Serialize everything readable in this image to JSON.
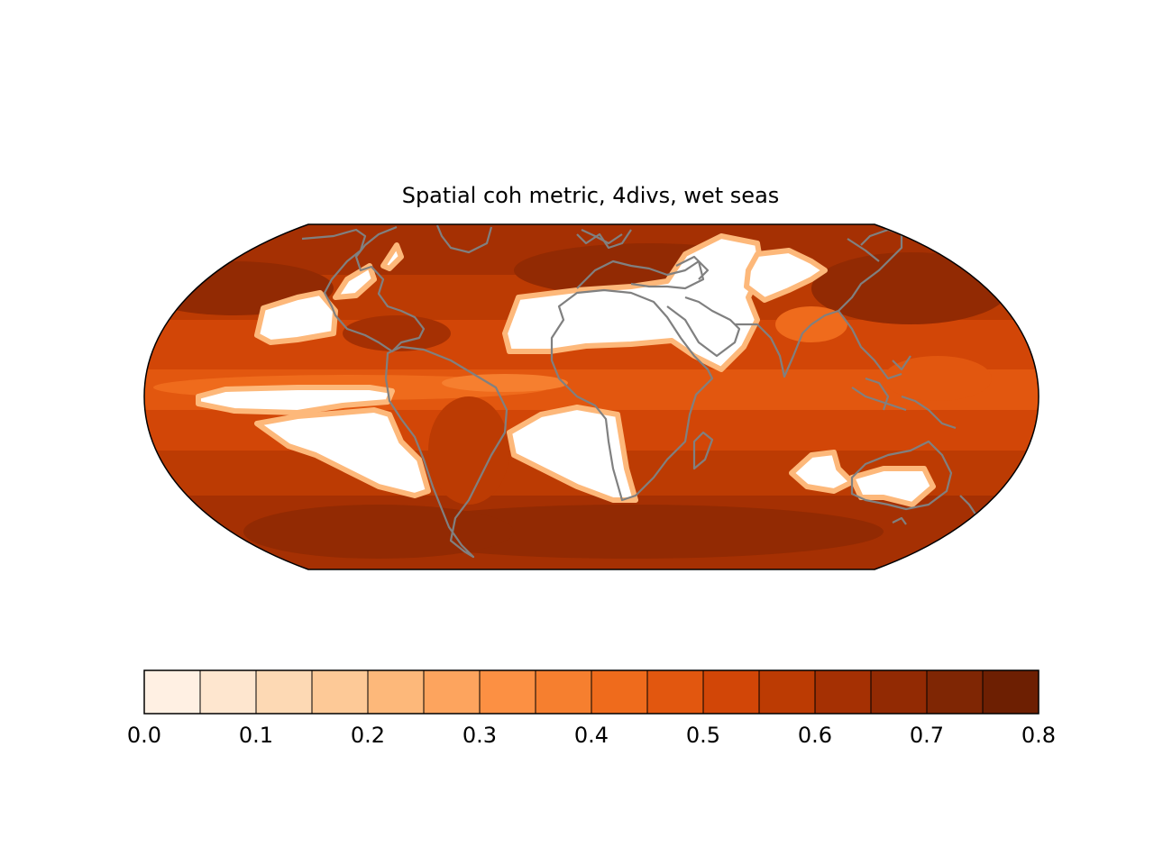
{
  "title": "Spatial coh metric, 4divs, wet seas",
  "map": {
    "projection": "robinson",
    "coastline_color": "#808080",
    "masked_color": "#ffffff",
    "masked_regions": [
      "Sahara / Arabia",
      "Central Asia",
      "Western US / Mexico",
      "Eastern tropical Pacific",
      "Southeast Pacific",
      "South Atlantic",
      "Australia",
      "Southeast Indian Ocean"
    ]
  },
  "colorbar": {
    "colormap": "Oranges",
    "boundaries": [
      0.0,
      0.05,
      0.1,
      0.15,
      0.2,
      0.25,
      0.3,
      0.35,
      0.4,
      0.45,
      0.5,
      0.55,
      0.6,
      0.65,
      0.7,
      0.75,
      0.8
    ],
    "colors": [
      "#fff0e3",
      "#fee6cf",
      "#fdd9b4",
      "#fdc997",
      "#fdb87a",
      "#fda45e",
      "#fc9043",
      "#f67f2f",
      "#ef6b1c",
      "#e2570f",
      "#d24607",
      "#bc3b03",
      "#a53003",
      "#922a03",
      "#7f2604",
      "#6d1f02"
    ],
    "tick_labels": [
      "0.0",
      "0.1",
      "0.2",
      "0.3",
      "0.4",
      "0.5",
      "0.6",
      "0.7",
      "0.8"
    ]
  }
}
